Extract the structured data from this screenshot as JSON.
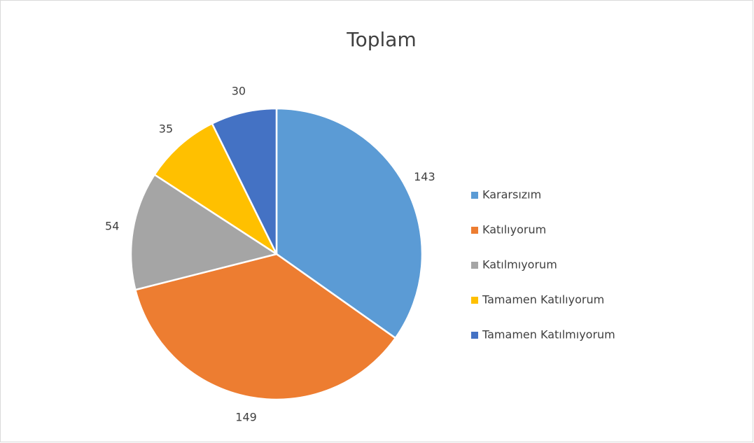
{
  "chart_data": {
    "type": "pie",
    "title": "Toplam",
    "categories": [
      "Kararsızım",
      "Katılıyorum",
      "Katılmıyorum",
      "Tamamen Katılıyorum",
      "Tamamen Katılmıyorum"
    ],
    "values": [
      143,
      149,
      54,
      35,
      30
    ],
    "colors": [
      "#5b9bd5",
      "#ed7d31",
      "#a5a5a5",
      "#ffc000",
      "#4472c4"
    ],
    "legend": "right"
  }
}
